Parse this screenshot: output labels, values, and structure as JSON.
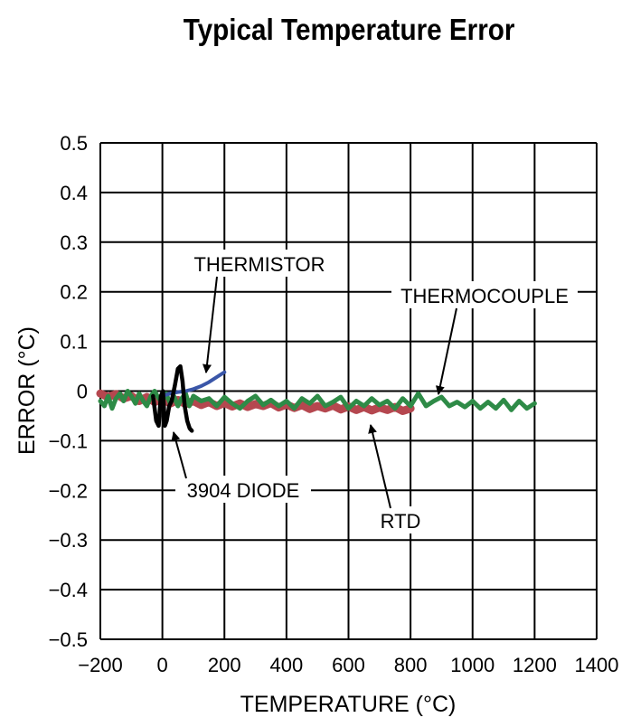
{
  "chart_data": {
    "type": "line",
    "title": "Typical Temperature Error",
    "xlabel": "TEMPERATURE (°C)",
    "ylabel": "ERROR (°C)",
    "xlim": [
      -200,
      1400
    ],
    "ylim": [
      -0.5,
      0.5
    ],
    "xticks": [
      -200,
      0,
      200,
      400,
      600,
      800,
      1000,
      1200,
      1400
    ],
    "xtick_labels": [
      "−200",
      "0",
      "200",
      "400",
      "600",
      "800",
      "1000",
      "1200",
      "1400"
    ],
    "yticks": [
      0.5,
      0.4,
      0.3,
      0.2,
      0.1,
      0,
      -0.1,
      -0.2,
      -0.3,
      -0.4,
      -0.5
    ],
    "ytick_labels": [
      "0.5",
      "0.4",
      "0.3",
      "0.2",
      "0.1",
      "0",
      "−0.1",
      "−0.2",
      "−0.3",
      "−0.4",
      "−0.5"
    ],
    "grid": true,
    "series": [
      {
        "name": "RTD",
        "color": "#b5474f",
        "x": [
          -200,
          -175,
          -150,
          -125,
          -100,
          -75,
          -50,
          -25,
          0,
          25,
          50,
          75,
          100,
          125,
          150,
          175,
          200,
          225,
          250,
          275,
          300,
          325,
          350,
          375,
          400,
          425,
          450,
          475,
          500,
          525,
          550,
          575,
          600,
          625,
          650,
          675,
          700,
          725,
          750,
          775,
          800
        ],
        "y": [
          -0.005,
          -0.012,
          -0.006,
          -0.015,
          -0.01,
          -0.02,
          -0.012,
          -0.022,
          -0.015,
          -0.025,
          -0.018,
          -0.026,
          -0.02,
          -0.028,
          -0.022,
          -0.03,
          -0.024,
          -0.031,
          -0.025,
          -0.032,
          -0.026,
          -0.03,
          -0.024,
          -0.033,
          -0.027,
          -0.034,
          -0.028,
          -0.036,
          -0.03,
          -0.035,
          -0.029,
          -0.037,
          -0.031,
          -0.038,
          -0.032,
          -0.039,
          -0.033,
          -0.038,
          -0.032,
          -0.04,
          -0.035
        ]
      },
      {
        "name": "THERMOCOUPLE",
        "color": "#2e8b47",
        "x": [
          -200,
          -187,
          -175,
          -162,
          -150,
          -137,
          -125,
          -112,
          -100,
          -87,
          -75,
          -62,
          -50,
          -37,
          -25,
          -12,
          0,
          12,
          25,
          37,
          50,
          62,
          75,
          87,
          100,
          125,
          150,
          175,
          200,
          225,
          250,
          275,
          300,
          325,
          350,
          375,
          400,
          425,
          450,
          475,
          500,
          525,
          550,
          575,
          600,
          625,
          650,
          675,
          700,
          725,
          750,
          775,
          800,
          825,
          850,
          875,
          900,
          925,
          950,
          975,
          1000,
          1025,
          1050,
          1075,
          1100,
          1125,
          1150,
          1175,
          1200
        ],
        "y": [
          -0.02,
          -0.03,
          -0.01,
          -0.035,
          -0.015,
          -0.005,
          -0.02,
          -0.0,
          -0.01,
          -0.025,
          -0.005,
          -0.02,
          -0.03,
          -0.01,
          -0.0,
          -0.015,
          -0.02,
          -0.005,
          -0.025,
          -0.01,
          -0.03,
          -0.015,
          -0.005,
          -0.03,
          -0.01,
          -0.02,
          -0.015,
          -0.03,
          -0.012,
          -0.025,
          -0.035,
          -0.02,
          -0.01,
          -0.028,
          -0.018,
          -0.03,
          -0.02,
          -0.035,
          -0.015,
          -0.025,
          -0.01,
          -0.03,
          -0.022,
          -0.012,
          -0.035,
          -0.02,
          -0.03,
          -0.015,
          -0.028,
          -0.02,
          -0.035,
          -0.015,
          -0.03,
          -0.005,
          -0.03,
          -0.02,
          -0.012,
          -0.03,
          -0.022,
          -0.032,
          -0.02,
          -0.035,
          -0.022,
          -0.035,
          -0.018,
          -0.038,
          -0.02,
          -0.035,
          -0.025
        ]
      },
      {
        "name": "THERMISTOR",
        "color": "#3a56a8",
        "x": [
          0,
          25,
          50,
          75,
          100,
          125,
          150,
          175,
          200
        ],
        "y": [
          -0.01,
          -0.005,
          -0.002,
          0.0,
          0.004,
          0.01,
          0.018,
          0.028,
          0.038
        ]
      },
      {
        "name": "3904 DIODE",
        "color": "#000000",
        "x": [
          -30,
          -20,
          -12,
          -5,
          2,
          8,
          14,
          22,
          30,
          40,
          50,
          58,
          65,
          72,
          80,
          88,
          95
        ],
        "y": [
          -0.01,
          -0.06,
          -0.07,
          -0.01,
          0.0,
          -0.07,
          -0.06,
          -0.03,
          -0.02,
          0.01,
          0.045,
          0.05,
          0.02,
          -0.03,
          -0.06,
          -0.075,
          -0.08
        ]
      }
    ],
    "annotations": [
      {
        "text": "THERMISTOR",
        "series": "THERMISTOR"
      },
      {
        "text": "THERMOCOUPLE",
        "series": "THERMOCOUPLE"
      },
      {
        "text": "3904 DIODE",
        "series": "3904 DIODE"
      },
      {
        "text": "RTD",
        "series": "RTD"
      }
    ]
  }
}
